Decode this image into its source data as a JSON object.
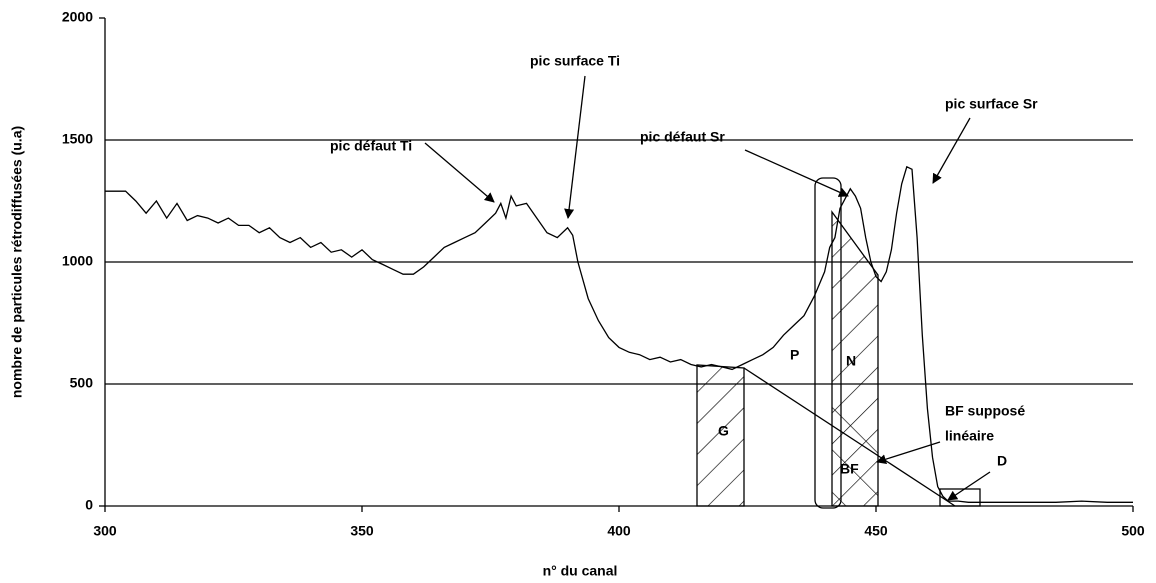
{
  "chart_data": {
    "type": "line",
    "x_label": "n° du canal",
    "y_label": "nombre de particules rétrodiffusées (u.a)",
    "xlim": [
      300,
      500
    ],
    "xticks": [
      300,
      350,
      400,
      450,
      500
    ],
    "ylim": [
      0,
      2000
    ],
    "yticks": [
      0,
      500,
      1000,
      1500,
      2000
    ],
    "grid": true,
    "color": "#000000",
    "x": [
      300,
      302,
      304,
      306,
      308,
      310,
      312,
      314,
      316,
      318,
      320,
      322,
      324,
      326,
      328,
      330,
      332,
      334,
      336,
      338,
      340,
      342,
      344,
      346,
      348,
      350,
      352,
      354,
      356,
      358,
      360,
      362,
      364,
      366,
      368,
      370,
      372,
      374,
      376,
      377,
      378,
      379,
      380,
      382,
      384,
      386,
      388,
      390,
      391,
      392,
      394,
      396,
      398,
      400,
      402,
      404,
      406,
      408,
      410,
      412,
      414,
      416,
      418,
      420,
      422,
      424,
      426,
      428,
      430,
      432,
      434,
      436,
      438,
      440,
      441,
      442,
      443,
      444,
      445,
      446,
      447,
      448,
      449,
      450,
      451,
      452,
      453,
      454,
      455,
      456,
      457,
      458,
      459,
      460,
      461,
      462,
      463,
      464,
      466,
      468,
      470,
      475,
      480,
      485,
      490,
      495,
      500
    ],
    "values": [
      1290,
      1290,
      1290,
      1250,
      1200,
      1250,
      1180,
      1240,
      1170,
      1190,
      1180,
      1160,
      1180,
      1150,
      1150,
      1120,
      1140,
      1100,
      1080,
      1100,
      1060,
      1080,
      1040,
      1050,
      1020,
      1050,
      1010,
      990,
      970,
      950,
      950,
      980,
      1020,
      1060,
      1080,
      1100,
      1120,
      1160,
      1200,
      1240,
      1180,
      1270,
      1230,
      1240,
      1180,
      1120,
      1100,
      1140,
      1110,
      1000,
      850,
      760,
      690,
      650,
      630,
      620,
      600,
      610,
      590,
      600,
      580,
      570,
      580,
      570,
      560,
      580,
      600,
      620,
      650,
      700,
      740,
      780,
      860,
      960,
      1060,
      1100,
      1220,
      1260,
      1300,
      1270,
      1220,
      1100,
      1000,
      940,
      920,
      960,
      1050,
      1200,
      1320,
      1390,
      1380,
      1100,
      700,
      400,
      200,
      80,
      40,
      20,
      20,
      15,
      15,
      15,
      15,
      15,
      20,
      15,
      15
    ],
    "annotations": [
      "pic défaut Ti",
      "pic surface Ti",
      "pic défaut Sr",
      "pic surface Sr",
      "BF supposé",
      "linéaire",
      "D",
      "G",
      "P",
      "N",
      "BF"
    ]
  }
}
